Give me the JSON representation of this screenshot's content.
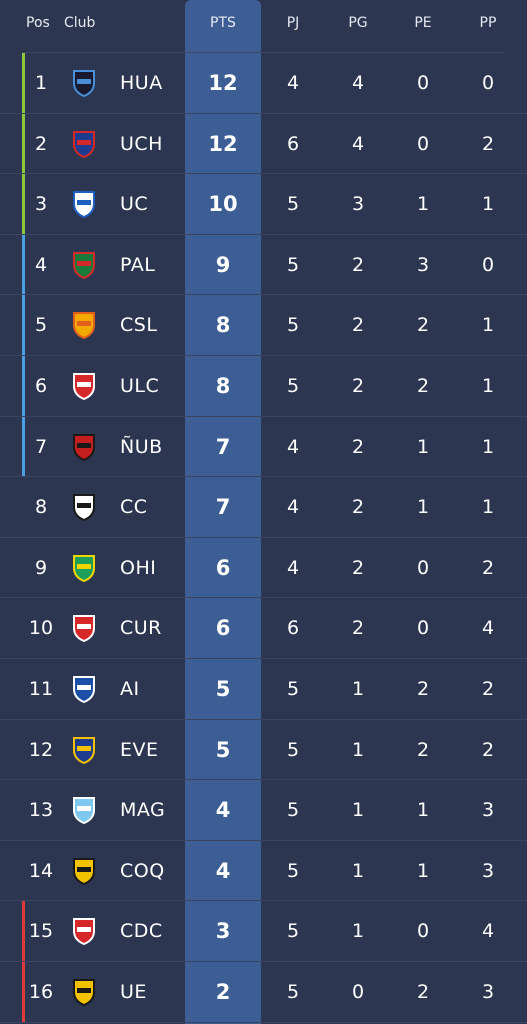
{
  "header": {
    "pos": "Pos",
    "club": "Club",
    "pts": "PTS",
    "pj": "PJ",
    "pg": "PG",
    "pe": "PE",
    "pp": "PP"
  },
  "colors": {
    "background": "#2d3650",
    "pts_column": "#3d5e94",
    "zone_green": "#8dc63f",
    "zone_blue": "#4a9fe0",
    "zone_red": "#e03a3a"
  },
  "rows": [
    {
      "pos": "1",
      "club": "HUA",
      "pts": "12",
      "pj": "4",
      "pg": "4",
      "pe": "0",
      "pp": "0",
      "zone": "green",
      "logo": "huachipato-crest-icon",
      "c1": "#1a1a2e",
      "c2": "#4a90d9"
    },
    {
      "pos": "2",
      "club": "UCH",
      "pts": "12",
      "pj": "6",
      "pg": "4",
      "pe": "0",
      "pp": "2",
      "zone": "green",
      "logo": "universidad-de-chile-crest-icon",
      "c1": "#1d3c8f",
      "c2": "#d62828"
    },
    {
      "pos": "3",
      "club": "UC",
      "pts": "10",
      "pj": "5",
      "pg": "3",
      "pe": "1",
      "pp": "1",
      "zone": "green",
      "logo": "universidad-catolica-crest-icon",
      "c1": "#ffffff",
      "c2": "#1d5fbf"
    },
    {
      "pos": "4",
      "club": "PAL",
      "pts": "9",
      "pj": "5",
      "pg": "2",
      "pe": "3",
      "pp": "0",
      "zone": "blue",
      "logo": "palestino-crest-icon",
      "c1": "#1a7a3a",
      "c2": "#d62828"
    },
    {
      "pos": "5",
      "club": "CSL",
      "pts": "8",
      "pj": "5",
      "pg": "2",
      "pe": "2",
      "pp": "1",
      "zone": "blue",
      "logo": "cobresal-crest-icon",
      "c1": "#f2a900",
      "c2": "#e35d1a"
    },
    {
      "pos": "6",
      "club": "ULC",
      "pts": "8",
      "pj": "5",
      "pg": "2",
      "pe": "2",
      "pp": "1",
      "zone": "blue",
      "logo": "union-la-calera-crest-icon",
      "c1": "#d62828",
      "c2": "#ffffff"
    },
    {
      "pos": "7",
      "club": "ÑUB",
      "pts": "7",
      "pj": "4",
      "pg": "2",
      "pe": "1",
      "pp": "1",
      "zone": "blue",
      "logo": "nublense-crest-icon",
      "c1": "#c41e1e",
      "c2": "#1a1a1a"
    },
    {
      "pos": "8",
      "club": "CC",
      "pts": "7",
      "pj": "4",
      "pg": "2",
      "pe": "1",
      "pp": "1",
      "zone": "",
      "logo": "colo-colo-crest-icon",
      "c1": "#ffffff",
      "c2": "#1a1a1a"
    },
    {
      "pos": "9",
      "club": "OHI",
      "pts": "6",
      "pj": "4",
      "pg": "2",
      "pe": "0",
      "pp": "2",
      "zone": "",
      "logo": "ohiggins-crest-icon",
      "c1": "#1d9e5a",
      "c2": "#f2d600"
    },
    {
      "pos": "10",
      "club": "CUR",
      "pts": "6",
      "pj": "6",
      "pg": "2",
      "pe": "0",
      "pp": "4",
      "zone": "",
      "logo": "curico-unido-crest-icon",
      "c1": "#d62828",
      "c2": "#ffffff"
    },
    {
      "pos": "11",
      "club": "AI",
      "pts": "5",
      "pj": "5",
      "pg": "1",
      "pe": "2",
      "pp": "2",
      "zone": "",
      "logo": "audax-italiano-crest-icon",
      "c1": "#1d4fa8",
      "c2": "#ffffff"
    },
    {
      "pos": "12",
      "club": "EVE",
      "pts": "5",
      "pj": "5",
      "pg": "1",
      "pe": "2",
      "pp": "2",
      "zone": "",
      "logo": "everton-crest-icon",
      "c1": "#1d3c8f",
      "c2": "#f2c200"
    },
    {
      "pos": "13",
      "club": "MAG",
      "pts": "4",
      "pj": "5",
      "pg": "1",
      "pe": "1",
      "pp": "3",
      "zone": "",
      "logo": "magallanes-crest-icon",
      "c1": "#7ec8ef",
      "c2": "#ffffff"
    },
    {
      "pos": "14",
      "club": "COQ",
      "pts": "4",
      "pj": "5",
      "pg": "1",
      "pe": "1",
      "pp": "3",
      "zone": "",
      "logo": "coquimbo-unido-crest-icon",
      "c1": "#f2c200",
      "c2": "#1a1a1a"
    },
    {
      "pos": "15",
      "club": "CDC",
      "pts": "3",
      "pj": "5",
      "pg": "1",
      "pe": "0",
      "pp": "4",
      "zone": "red",
      "logo": "cobreloa-crest-icon",
      "c1": "#d62828",
      "c2": "#ffffff"
    },
    {
      "pos": "16",
      "club": "UE",
      "pts": "2",
      "pj": "5",
      "pg": "0",
      "pe": "2",
      "pp": "3",
      "zone": "red",
      "logo": "union-espanola-crest-icon",
      "c1": "#f2c200",
      "c2": "#1a1a1a"
    }
  ]
}
